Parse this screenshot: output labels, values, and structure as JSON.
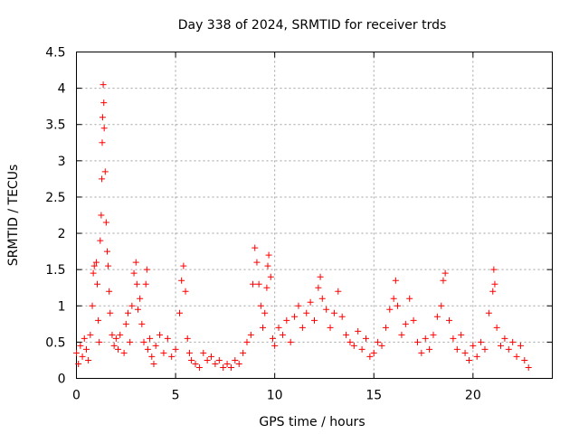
{
  "chart_data": {
    "type": "scatter",
    "title": "Day 338 of 2024, SRMTID for receiver trds",
    "xlabel": "GPS time / hours",
    "ylabel": "SRMTID / TECUs",
    "xlim": [
      0,
      24
    ],
    "ylim": [
      0,
      4.5
    ],
    "x_ticks": [
      0,
      5,
      10,
      15,
      20
    ],
    "x_tick_labels": [
      "0",
      "5",
      "10",
      "15",
      "20"
    ],
    "y_ticks": [
      0,
      0.5,
      1,
      1.5,
      2,
      2.5,
      3,
      3.5,
      4,
      4.5
    ],
    "y_tick_labels": [
      "0",
      "0.5",
      "1",
      "1.5",
      "2",
      "2.5",
      "3",
      "3.5",
      "4",
      "4.5"
    ],
    "grid": true,
    "marker": "+",
    "color": "#ff0000",
    "series": [
      {
        "name": "SRMTID",
        "points": [
          [
            0.0,
            0.35
          ],
          [
            0.1,
            0.2
          ],
          [
            0.2,
            0.45
          ],
          [
            0.3,
            0.3
          ],
          [
            0.4,
            0.55
          ],
          [
            0.5,
            0.4
          ],
          [
            0.6,
            0.25
          ],
          [
            0.7,
            0.6
          ],
          [
            0.8,
            1.0
          ],
          [
            0.85,
            1.45
          ],
          [
            0.9,
            1.55
          ],
          [
            1.0,
            1.6
          ],
          [
            1.05,
            1.3
          ],
          [
            1.1,
            0.8
          ],
          [
            1.15,
            0.5
          ],
          [
            1.2,
            1.9
          ],
          [
            1.25,
            2.25
          ],
          [
            1.28,
            2.75
          ],
          [
            1.3,
            3.25
          ],
          [
            1.32,
            3.6
          ],
          [
            1.35,
            4.05
          ],
          [
            1.38,
            3.8
          ],
          [
            1.4,
            3.45
          ],
          [
            1.45,
            2.85
          ],
          [
            1.5,
            2.15
          ],
          [
            1.55,
            1.75
          ],
          [
            1.6,
            1.55
          ],
          [
            1.65,
            1.2
          ],
          [
            1.7,
            0.9
          ],
          [
            1.8,
            0.6
          ],
          [
            1.9,
            0.45
          ],
          [
            2.0,
            0.55
          ],
          [
            2.1,
            0.4
          ],
          [
            2.2,
            0.6
          ],
          [
            2.4,
            0.35
          ],
          [
            2.5,
            0.75
          ],
          [
            2.6,
            0.9
          ],
          [
            2.7,
            0.5
          ],
          [
            2.8,
            1.0
          ],
          [
            2.9,
            1.45
          ],
          [
            3.0,
            1.6
          ],
          [
            3.05,
            1.3
          ],
          [
            3.1,
            0.95
          ],
          [
            3.2,
            1.1
          ],
          [
            3.3,
            0.75
          ],
          [
            3.4,
            0.5
          ],
          [
            3.5,
            1.3
          ],
          [
            3.55,
            1.5
          ],
          [
            3.6,
            0.4
          ],
          [
            3.7,
            0.55
          ],
          [
            3.8,
            0.3
          ],
          [
            3.9,
            0.2
          ],
          [
            4.0,
            0.45
          ],
          [
            4.2,
            0.6
          ],
          [
            4.4,
            0.35
          ],
          [
            4.6,
            0.55
          ],
          [
            4.8,
            0.3
          ],
          [
            5.0,
            0.4
          ],
          [
            5.2,
            0.9
          ],
          [
            5.3,
            1.35
          ],
          [
            5.4,
            1.55
          ],
          [
            5.5,
            1.2
          ],
          [
            5.6,
            0.55
          ],
          [
            5.7,
            0.35
          ],
          [
            5.8,
            0.25
          ],
          [
            6.0,
            0.2
          ],
          [
            6.2,
            0.15
          ],
          [
            6.4,
            0.35
          ],
          [
            6.6,
            0.25
          ],
          [
            6.8,
            0.3
          ],
          [
            7.0,
            0.2
          ],
          [
            7.2,
            0.25
          ],
          [
            7.4,
            0.15
          ],
          [
            7.6,
            0.2
          ],
          [
            7.8,
            0.15
          ],
          [
            8.0,
            0.25
          ],
          [
            8.2,
            0.2
          ],
          [
            8.4,
            0.35
          ],
          [
            8.6,
            0.5
          ],
          [
            8.8,
            0.6
          ],
          [
            8.9,
            1.3
          ],
          [
            9.0,
            1.8
          ],
          [
            9.1,
            1.6
          ],
          [
            9.2,
            1.3
          ],
          [
            9.3,
            1.0
          ],
          [
            9.4,
            0.7
          ],
          [
            9.5,
            0.9
          ],
          [
            9.6,
            1.25
          ],
          [
            9.65,
            1.55
          ],
          [
            9.7,
            1.7
          ],
          [
            9.8,
            1.4
          ],
          [
            9.9,
            0.55
          ],
          [
            10.0,
            0.45
          ],
          [
            10.2,
            0.7
          ],
          [
            10.4,
            0.6
          ],
          [
            10.6,
            0.8
          ],
          [
            10.8,
            0.5
          ],
          [
            11.0,
            0.85
          ],
          [
            11.2,
            1.0
          ],
          [
            11.4,
            0.7
          ],
          [
            11.6,
            0.9
          ],
          [
            11.8,
            1.05
          ],
          [
            12.0,
            0.8
          ],
          [
            12.2,
            1.25
          ],
          [
            12.3,
            1.4
          ],
          [
            12.4,
            1.1
          ],
          [
            12.6,
            0.95
          ],
          [
            12.8,
            0.7
          ],
          [
            13.0,
            0.9
          ],
          [
            13.2,
            1.2
          ],
          [
            13.4,
            0.85
          ],
          [
            13.6,
            0.6
          ],
          [
            13.8,
            0.5
          ],
          [
            14.0,
            0.45
          ],
          [
            14.2,
            0.65
          ],
          [
            14.4,
            0.4
          ],
          [
            14.6,
            0.55
          ],
          [
            14.8,
            0.3
          ],
          [
            15.0,
            0.35
          ],
          [
            15.2,
            0.5
          ],
          [
            15.4,
            0.45
          ],
          [
            15.6,
            0.7
          ],
          [
            15.8,
            0.95
          ],
          [
            16.0,
            1.1
          ],
          [
            16.1,
            1.35
          ],
          [
            16.2,
            1.0
          ],
          [
            16.4,
            0.6
          ],
          [
            16.6,
            0.75
          ],
          [
            16.8,
            1.1
          ],
          [
            17.0,
            0.8
          ],
          [
            17.2,
            0.5
          ],
          [
            17.4,
            0.35
          ],
          [
            17.6,
            0.55
          ],
          [
            17.8,
            0.4
          ],
          [
            18.0,
            0.6
          ],
          [
            18.2,
            0.85
          ],
          [
            18.4,
            1.0
          ],
          [
            18.5,
            1.35
          ],
          [
            18.6,
            1.45
          ],
          [
            18.8,
            0.8
          ],
          [
            19.0,
            0.55
          ],
          [
            19.2,
            0.4
          ],
          [
            19.4,
            0.6
          ],
          [
            19.6,
            0.35
          ],
          [
            19.8,
            0.25
          ],
          [
            20.0,
            0.45
          ],
          [
            20.2,
            0.3
          ],
          [
            20.4,
            0.5
          ],
          [
            20.6,
            0.4
          ],
          [
            20.8,
            0.9
          ],
          [
            21.0,
            1.2
          ],
          [
            21.05,
            1.5
          ],
          [
            21.1,
            1.3
          ],
          [
            21.2,
            0.7
          ],
          [
            21.4,
            0.45
          ],
          [
            21.6,
            0.55
          ],
          [
            21.8,
            0.4
          ],
          [
            22.0,
            0.5
          ],
          [
            22.2,
            0.3
          ],
          [
            22.4,
            0.45
          ],
          [
            22.6,
            0.25
          ],
          [
            22.8,
            0.15
          ]
        ]
      }
    ]
  }
}
